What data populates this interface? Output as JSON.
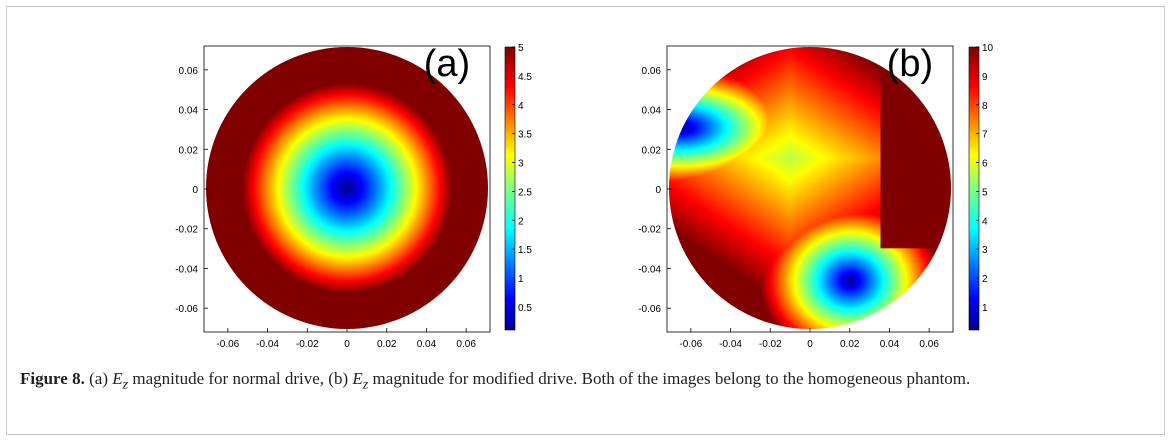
{
  "caption": {
    "label": "Figure 8.",
    "part1": "(a) ",
    "ez1": "E",
    "ez1sub": "z",
    "part2": " magnitude for normal drive, (b) ",
    "ez2": "E",
    "ez2sub": "z",
    "part3": " magnitude for modified drive. Both of the images belong to the homogeneous phantom."
  },
  "chart_data": [
    {
      "type": "heatmap",
      "panel_label": "(a)",
      "title": "",
      "xlabel": "",
      "ylabel": "",
      "xlim": [
        -0.072,
        0.072
      ],
      "ylim": [
        -0.072,
        0.072
      ],
      "x_ticks": [
        "-0.06",
        "-0.04",
        "-0.02",
        "0",
        "0.02",
        "0.04",
        "0.06"
      ],
      "y_ticks": [
        "0.06",
        "0.04",
        "0.02",
        "0",
        "-0.02",
        "-0.04",
        "-0.06"
      ],
      "colorbar_ticks": [
        "5",
        "4.5",
        "4",
        "3.5",
        "3",
        "2.5",
        "2",
        "1.5",
        "1",
        "0.5"
      ],
      "colorbar_range": [
        0.1,
        5
      ],
      "colormap": "jet",
      "domain": "circle",
      "domain_radius": 0.07,
      "field": "radially increasing magnitude; minimum ~0.1 at center (0,0), saturating to 5 near radius 0.05"
    },
    {
      "type": "heatmap",
      "panel_label": "(b)",
      "title": "",
      "xlabel": "",
      "ylabel": "",
      "xlim": [
        -0.072,
        0.072
      ],
      "ylim": [
        -0.072,
        0.072
      ],
      "x_ticks": [
        "-0.06",
        "-0.04",
        "-0.02",
        "0",
        "0.02",
        "0.04",
        "0.06"
      ],
      "y_ticks": [
        "0.06",
        "0.04",
        "0.02",
        "0",
        "-0.02",
        "-0.04",
        "-0.06"
      ],
      "colorbar_ticks": [
        "10",
        "9",
        "8",
        "7",
        "6",
        "5",
        "4",
        "3",
        "2",
        "1"
      ],
      "colorbar_range": [
        0.2,
        10
      ],
      "colormap": "jet",
      "domain": "circle",
      "domain_radius": 0.07,
      "field": "low-magnitude minima near (0.02,-0.046) and (-0.064,0.03); high (10) across right and upper regions",
      "minima": [
        {
          "x": 0.02,
          "y": -0.046
        },
        {
          "x": -0.064,
          "y": 0.03
        }
      ]
    }
  ]
}
